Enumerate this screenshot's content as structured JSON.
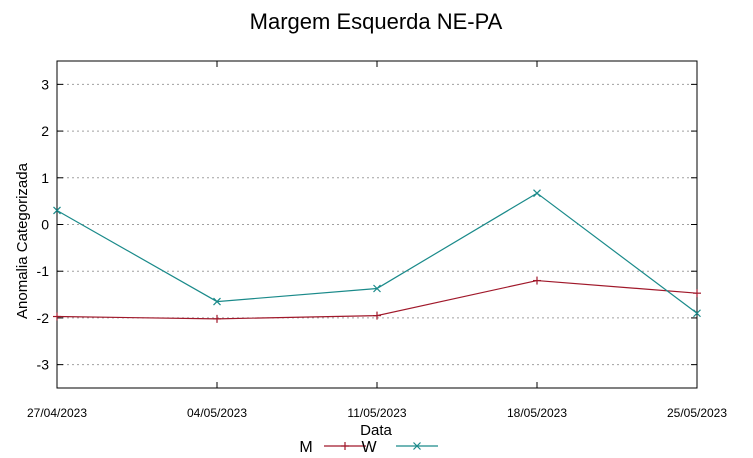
{
  "chart_data": {
    "type": "line",
    "title": "Margem Esquerda NE-PA",
    "xlabel": "Data",
    "ylabel": "Anomalia Categorizada",
    "categories": [
      "27/04/2023",
      "04/05/2023",
      "11/05/2023",
      "18/05/2023",
      "25/05/2023"
    ],
    "ylim": [
      -3.5,
      3.5
    ],
    "yticks": [
      "3",
      "2",
      "1",
      "0",
      "-1",
      "-2",
      "-3"
    ],
    "grid": true,
    "legend_position": "bottom-center",
    "series": [
      {
        "name": "M",
        "color": "#a0182a",
        "marker": "plus",
        "values": [
          -1.97,
          -2.02,
          -1.95,
          -1.2,
          -1.47
        ]
      },
      {
        "name": "W",
        "color": "#1a8a8a",
        "marker": "cross",
        "values": [
          0.3,
          -1.65,
          -1.37,
          0.67,
          -1.9
        ]
      }
    ]
  }
}
